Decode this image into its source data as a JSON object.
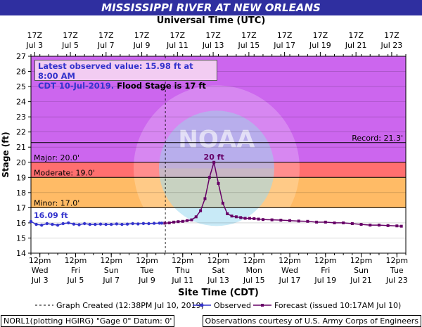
{
  "title": "MISSISSIPPI RIVER AT NEW ORLEANS",
  "top_axis_title": "Universal Time (UTC)",
  "bottom_axis_title": "Site Time (CDT)",
  "y_axis_title": "Stage (ft)",
  "info": {
    "line1": "Latest observed value: 15.98 ft at 8:00 AM",
    "line2a": "CDT 10-Jul-2019.",
    "line2b": " Flood Stage is 17 ft"
  },
  "legend": {
    "graph_created": "Graph Created (12:38PM Jul 10, 2019)",
    "observed": "Observed",
    "forecast": "Forecast (issued 10:17AM Jul 10)"
  },
  "footer": {
    "left": "NORL1(plotting HGIRG) \"Gage 0\" Datum: 0'",
    "right": "Observations courtesy of U.S. Army Corps of Engineers"
  },
  "watermark": "NOAA",
  "colors": {
    "record_zone": "#cc66ee",
    "major_zone": "#cc66ee",
    "moderate_zone": "#ff6f6f",
    "minor_zone": "#ffbb66",
    "observed": "#3333cc",
    "forecast": "#660066",
    "title_bg": "#2f2fa0"
  },
  "chart_data": {
    "type": "line",
    "title": "MISSISSIPPI RIVER AT NEW ORLEANS",
    "xlabel": "Site Time (CDT)",
    "ylabel": "Stage (ft)",
    "ylim": [
      14,
      27
    ],
    "xlim_days": [
      3.0,
      24.0
    ],
    "yticks": [
      14,
      15,
      16,
      17,
      18,
      19,
      20,
      21,
      22,
      23,
      24,
      25,
      26,
      27
    ],
    "top_ticks": [
      {
        "day": 3.2083,
        "top": "17Z",
        "bottom": "Jul 3"
      },
      {
        "day": 5.2083,
        "top": "17Z",
        "bottom": "Jul 5"
      },
      {
        "day": 7.2083,
        "top": "17Z",
        "bottom": "Jul 7"
      },
      {
        "day": 9.2083,
        "top": "17Z",
        "bottom": "Jul 9"
      },
      {
        "day": 11.2083,
        "top": "17Z",
        "bottom": "Jul 11"
      },
      {
        "day": 13.2083,
        "top": "17Z",
        "bottom": "Jul 13"
      },
      {
        "day": 15.2083,
        "top": "17Z",
        "bottom": "Jul 15"
      },
      {
        "day": 17.2083,
        "top": "17Z",
        "bottom": "Jul 17"
      },
      {
        "day": 19.2083,
        "top": "17Z",
        "bottom": "Jul 19"
      },
      {
        "day": 21.2083,
        "top": "17Z",
        "bottom": "Jul 21"
      },
      {
        "day": 23.2083,
        "top": "17Z",
        "bottom": "Jul 23"
      }
    ],
    "bottom_ticks": [
      {
        "day": 3.5,
        "l1": "12pm",
        "l2": "Wed",
        "l3": "Jul 3"
      },
      {
        "day": 5.5,
        "l1": "12pm",
        "l2": "Fri",
        "l3": "Jul 5"
      },
      {
        "day": 7.5,
        "l1": "12pm",
        "l2": "Sun",
        "l3": "Jul 7"
      },
      {
        "day": 9.5,
        "l1": "12pm",
        "l2": "Tue",
        "l3": "Jul 9"
      },
      {
        "day": 11.5,
        "l1": "12pm",
        "l2": "Thu",
        "l3": "Jul 11"
      },
      {
        "day": 13.5,
        "l1": "12pm",
        "l2": "Sat",
        "l3": "Jul 13"
      },
      {
        "day": 15.5,
        "l1": "12pm",
        "l2": "Mon",
        "l3": "Jul 15"
      },
      {
        "day": 17.5,
        "l1": "12pm",
        "l2": "Wed",
        "l3": "Jul 17"
      },
      {
        "day": 19.5,
        "l1": "12pm",
        "l2": "Fri",
        "l3": "Jul 19"
      },
      {
        "day": 21.5,
        "l1": "12pm",
        "l2": "Sun",
        "l3": "Jul 21"
      },
      {
        "day": 23.5,
        "l1": "12pm",
        "l2": "Tue",
        "l3": "Jul 23"
      }
    ],
    "minor_tick_hours": 12,
    "flood_categories": [
      {
        "name": "Record",
        "label": "Record: 21.3'",
        "stage": 21.3
      },
      {
        "name": "Major",
        "label": "Major: 20.0'",
        "stage": 20.0
      },
      {
        "name": "Moderate",
        "label": "Moderate: 19.0'",
        "stage": 19.0
      },
      {
        "name": "Minor",
        "label": "Minor: 17.0'",
        "stage": 17.0
      }
    ],
    "graph_created_day": 10.53,
    "observed_start_label": "16.09 ft",
    "peak_label": "20 ft",
    "series": [
      {
        "name": "Observed",
        "x": [
          3.0,
          3.3,
          3.6,
          3.9,
          4.2,
          4.5,
          4.8,
          5.1,
          5.4,
          5.7,
          6.0,
          6.3,
          6.6,
          6.9,
          7.2,
          7.5,
          7.8,
          8.1,
          8.4,
          8.7,
          9.0,
          9.3,
          9.6,
          9.9,
          10.2,
          10.33
        ],
        "y": [
          16.09,
          15.9,
          15.85,
          15.95,
          15.9,
          15.85,
          15.95,
          16.0,
          15.92,
          15.88,
          15.95,
          15.9,
          15.9,
          15.92,
          15.9,
          15.9,
          15.93,
          15.9,
          15.92,
          15.95,
          15.93,
          15.96,
          15.95,
          15.97,
          15.98,
          15.98
        ]
      },
      {
        "name": "Forecast",
        "x": [
          10.5,
          10.75,
          11.0,
          11.25,
          11.5,
          11.75,
          12.0,
          12.25,
          12.5,
          12.75,
          13.0,
          13.25,
          13.5,
          13.75,
          14.0,
          14.25,
          14.5,
          14.75,
          15.0,
          15.25,
          15.5,
          15.75,
          16.0,
          16.5,
          17.0,
          17.5,
          18.0,
          18.5,
          19.0,
          19.5,
          20.0,
          20.5,
          21.0,
          21.5,
          22.0,
          22.5,
          23.0,
          23.5,
          23.75
        ],
        "y": [
          15.98,
          16.0,
          16.05,
          16.08,
          16.1,
          16.15,
          16.2,
          16.4,
          16.8,
          17.6,
          19.0,
          20.0,
          18.6,
          17.3,
          16.6,
          16.45,
          16.4,
          16.35,
          16.3,
          16.3,
          16.28,
          16.25,
          16.22,
          16.2,
          16.18,
          16.15,
          16.12,
          16.1,
          16.05,
          16.05,
          16.0,
          16.0,
          15.95,
          15.9,
          15.85,
          15.85,
          15.82,
          15.8,
          15.78
        ]
      }
    ]
  }
}
